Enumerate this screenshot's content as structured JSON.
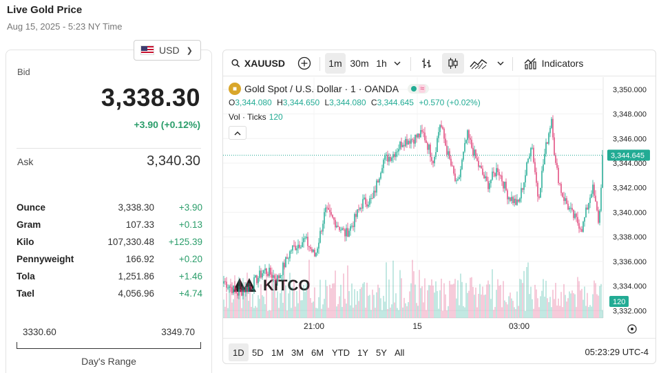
{
  "header": {
    "title": "Live Gold Price",
    "subtitle": "Aug 15, 2025 - 5:23 NY Time"
  },
  "currency": {
    "selected": "USD"
  },
  "quote": {
    "bid_label": "Bid",
    "bid": "3,338.30",
    "change": "+3.90 (+0.12%)",
    "ask_label": "Ask",
    "ask": "3,340.30"
  },
  "units": [
    {
      "name": "Ounce",
      "price": "3,338.30",
      "change": "+3.90"
    },
    {
      "name": "Gram",
      "price": "107.33",
      "change": "+0.13"
    },
    {
      "name": "Kilo",
      "price": "107,330.48",
      "change": "+125.39"
    },
    {
      "name": "Pennyweight",
      "price": "166.92",
      "change": "+0.20"
    },
    {
      "name": "Tola",
      "price": "1,251.86",
      "change": "+1.46"
    },
    {
      "name": "Tael",
      "price": "4,056.96",
      "change": "+4.74"
    }
  ],
  "days_range": {
    "low": "3330.60",
    "high": "3349.70",
    "label": "Day's Range"
  },
  "chart_widget": {
    "symbol": "XAUUSD",
    "intervals": [
      "1m",
      "30m",
      "1h"
    ],
    "active_interval": "1m",
    "indicators_label": "Indicators",
    "title": "Gold Spot / U.S. Dollar · 1 · OANDA",
    "ohlc": {
      "o_label": "O",
      "o": "3,344.080",
      "h_label": "H",
      "h": "3,344.650",
      "l_label": "L",
      "l": "3,344.080",
      "c_label": "C",
      "c": "3,344.645",
      "change": "+0.570 (+0.02%)"
    },
    "volume_label": "Vol · Ticks",
    "volume_value": "120",
    "watermark": "KITCO",
    "ranges": [
      "1D",
      "5D",
      "1M",
      "3M",
      "6M",
      "YTD",
      "1Y",
      "5Y",
      "All"
    ],
    "active_range": "1D",
    "clock": "05:23:29 UTC-4",
    "colors": {
      "up": "#22ab94",
      "down": "#e0457b",
      "pane_bg": "#ffffff",
      "brand_gold": "#d9a62a"
    }
  },
  "chart_data": {
    "type": "candlestick",
    "y_axis": {
      "ticks": [
        "3,350.000",
        "3,348.000",
        "3,346.000",
        "3,344.000",
        "3,342.000",
        "3,340.000",
        "3,338.000",
        "3,336.000",
        "3,334.000",
        "3,332.000"
      ],
      "ylim": [
        3331.4,
        3351.0
      ]
    },
    "x_axis": {
      "ticks": [
        "21:00",
        "15",
        "03:00"
      ]
    },
    "last_price": "3,344.645",
    "last_volume": "120",
    "price_path": [
      [
        0,
        3334.4
      ],
      [
        0.04,
        3333.4
      ],
      [
        0.08,
        3334.0
      ],
      [
        0.12,
        3335.3
      ],
      [
        0.16,
        3334.6
      ],
      [
        0.2,
        3337.0
      ],
      [
        0.24,
        3337.8
      ],
      [
        0.27,
        3336.4
      ],
      [
        0.3,
        3340.1
      ],
      [
        0.33,
        3339.2
      ],
      [
        0.36,
        3338.2
      ],
      [
        0.38,
        3339.0
      ],
      [
        0.41,
        3340.8
      ],
      [
        0.44,
        3341.0
      ],
      [
        0.47,
        3344.2
      ],
      [
        0.5,
        3344.7
      ],
      [
        0.53,
        3345.8
      ],
      [
        0.56,
        3346.0
      ],
      [
        0.59,
        3346.4
      ],
      [
        0.62,
        3344.2
      ],
      [
        0.64,
        3347.3
      ],
      [
        0.66,
        3345.0
      ],
      [
        0.69,
        3342.0
      ],
      [
        0.72,
        3346.3
      ],
      [
        0.75,
        3344.0
      ],
      [
        0.78,
        3342.2
      ],
      [
        0.81,
        3343.6
      ],
      [
        0.84,
        3341.4
      ],
      [
        0.87,
        3340.6
      ],
      [
        0.89,
        3342.8
      ],
      [
        0.91,
        3345.8
      ],
      [
        0.93,
        3341.1
      ],
      [
        0.95,
        3344.9
      ],
      [
        0.97,
        3347.8
      ],
      [
        0.98,
        3344.0
      ],
      [
        1.0,
        3341.5
      ],
      [
        1.03,
        3339.8
      ],
      [
        1.06,
        3338.7
      ],
      [
        1.09,
        3342.1
      ],
      [
        1.11,
        3339.0
      ],
      [
        1.12,
        3344.6
      ]
    ]
  }
}
